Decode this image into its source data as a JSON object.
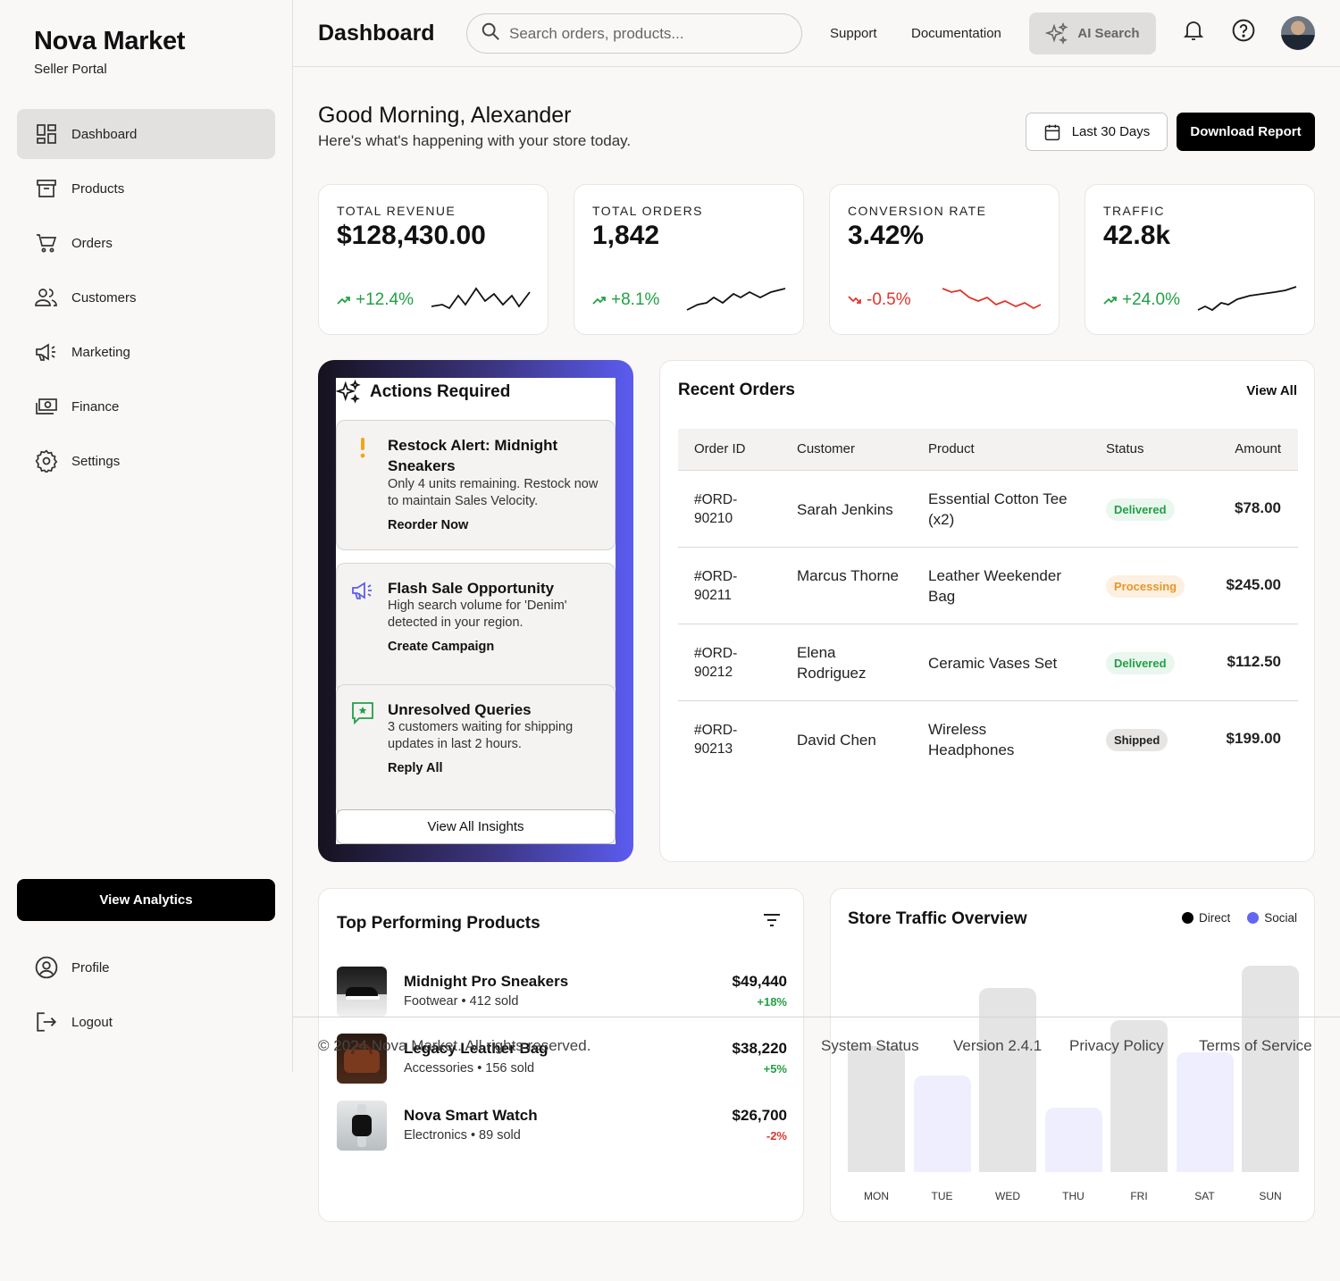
{
  "brand": {
    "title": "Nova Market",
    "subtitle": "Seller Portal"
  },
  "sidebar": {
    "items": [
      {
        "label": "Dashboard",
        "icon": "dashboard-icon",
        "active": true
      },
      {
        "label": "Products",
        "icon": "archive-icon"
      },
      {
        "label": "Orders",
        "icon": "cart-icon"
      },
      {
        "label": "Customers",
        "icon": "users-icon"
      },
      {
        "label": "Marketing",
        "icon": "megaphone-icon"
      },
      {
        "label": "Finance",
        "icon": "money-icon"
      },
      {
        "label": "Settings",
        "icon": "gear-icon"
      }
    ],
    "cta_label": "View Analytics",
    "bottom": [
      {
        "label": "Profile",
        "icon": "user-circle-icon"
      },
      {
        "label": "Logout",
        "icon": "logout-icon"
      }
    ]
  },
  "header": {
    "title": "Dashboard",
    "search_placeholder": "Search orders, products...",
    "links": [
      "Support",
      "Documentation"
    ],
    "ai_label": "AI Search"
  },
  "greeting": {
    "title": "Good Morning, Alexander",
    "subtitle": "Here's what's happening with your store today.",
    "range_label": "Last 30 Days",
    "download_label": "Download Report"
  },
  "kpis": [
    {
      "label": "TOTAL REVENUE",
      "value": "$128,430.00",
      "delta": "+12.4%",
      "trend": "up",
      "color": "#22a045"
    },
    {
      "label": "TOTAL ORDERS",
      "value": "1,842",
      "delta": "+8.1%",
      "trend": "up",
      "color": "#22a045"
    },
    {
      "label": "CONVERSION RATE",
      "value": "3.42%",
      "delta": "-0.5%",
      "trend": "down",
      "color": "#e0352b"
    },
    {
      "label": "TRAFFIC",
      "value": "42.8k",
      "delta": "+24.0%",
      "trend": "up",
      "color": "#22a045"
    }
  ],
  "actions": {
    "title": "Actions Required",
    "cards": [
      {
        "title": "Restock Alert: Midnight Sneakers",
        "desc": "Only 4 units remaining. Restock now to maintain Sales Velocity.",
        "link": "Reorder Now",
        "icon": "exclamation-icon"
      },
      {
        "title": "Flash Sale Opportunity",
        "desc": "High search volume for 'Denim' detected in your region.",
        "link": "Create Campaign",
        "icon": "megaphone-icon"
      },
      {
        "title": "Unresolved Queries",
        "desc": "3 customers waiting for shipping updates in last 2 hours.",
        "link": "Reply All",
        "icon": "chat-star-icon"
      }
    ],
    "button": "View All Insights"
  },
  "orders": {
    "title": "Recent Orders",
    "view_all": "View All",
    "columns": [
      "Order ID",
      "Customer",
      "Product",
      "Status",
      "Amount"
    ],
    "rows": [
      {
        "id": "#ORD-\n90210",
        "customer": "Sarah Jenkins",
        "product": "Essential Cotton Tee (x2)",
        "status": "Delivered",
        "amount": "$78.00"
      },
      {
        "id": "#ORD-\n90211",
        "customer": "Marcus Thorne",
        "product": "Leather Weekender Bag",
        "status": "Processing",
        "amount": "$245.00"
      },
      {
        "id": "#ORD-\n90212",
        "customer": "Elena Rodriguez",
        "product": "Ceramic Vases Set",
        "status": "Delivered",
        "amount": "$112.50"
      },
      {
        "id": "#ORD-\n90213",
        "customer": "David Chen",
        "product": "Wireless Headphones",
        "status": "Shipped",
        "amount": "$199.00"
      }
    ]
  },
  "top_products": {
    "title": "Top Performing Products",
    "items": [
      {
        "name": "Midnight Pro Sneakers",
        "meta": "Footwear • 412 sold",
        "value": "$49,440",
        "delta": "+18%",
        "delta_color": "#22a045"
      },
      {
        "name": "Legacy Leather Bag",
        "meta": "Accessories • 156 sold",
        "value": "$38,220",
        "delta": "+5%",
        "delta_color": "#22a045"
      },
      {
        "name": "Nova Smart Watch",
        "meta": "Electronics • 89 sold",
        "value": "$26,700",
        "delta": "-2%",
        "delta_color": "#e0352b"
      }
    ]
  },
  "traffic": {
    "title": "Store Traffic Overview",
    "legend": [
      {
        "label": "Direct",
        "color": "#000000"
      },
      {
        "label": "Social",
        "color": "#6366f1"
      }
    ]
  },
  "chart_data": {
    "type": "bar",
    "categories": [
      "MON",
      "TUE",
      "WED",
      "THU",
      "FRI",
      "SAT",
      "SUN"
    ],
    "series": [
      {
        "name": "Direct",
        "values": [
          55,
          null,
          80,
          null,
          66,
          null,
          90
        ]
      },
      {
        "name": "Social",
        "values": [
          null,
          42,
          null,
          28,
          null,
          52,
          null
        ]
      }
    ],
    "colors": {
      "Direct": "#e4e4e4",
      "Social": "#eeeefe"
    },
    "title": "Store Traffic Overview",
    "xlabel": "",
    "ylabel": "",
    "ylim": [
      0,
      100
    ]
  },
  "footer": {
    "copyright": "© 2024 Nova Market. All rights reserved.",
    "links": [
      "System Status",
      "Version 2.4.1",
      "Privacy Policy",
      "Terms of Service"
    ]
  }
}
